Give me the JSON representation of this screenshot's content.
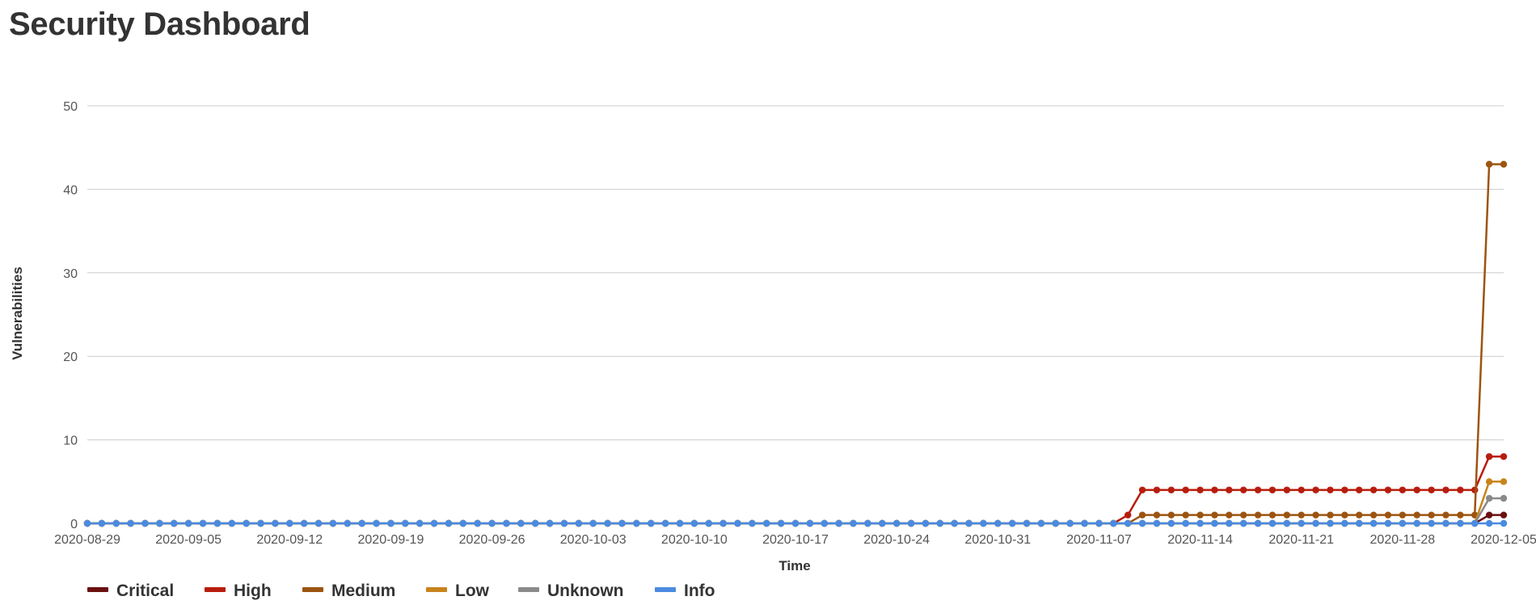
{
  "page": {
    "title": "Security Dashboard"
  },
  "chart_data": {
    "type": "line",
    "xlabel": "Time",
    "ylabel": "Vulnerabilities",
    "ylim": [
      0,
      50
    ],
    "yticks": [
      0,
      10,
      20,
      30,
      40,
      50
    ],
    "x_start": "2020-08-29",
    "x_end": "2020-12-05",
    "xticks": [
      "2020-08-29",
      "2020-09-05",
      "2020-09-12",
      "2020-09-19",
      "2020-09-26",
      "2020-10-03",
      "2020-10-10",
      "2020-10-17",
      "2020-10-24",
      "2020-10-31",
      "2020-11-07",
      "2020-11-14",
      "2020-11-21",
      "2020-11-28",
      "2020-12-05"
    ],
    "grid": "horizontal",
    "legend_position": "bottom-left",
    "series": [
      {
        "name": "Critical",
        "color": "#6b1010",
        "changes": [
          [
            "2020-08-29",
            0
          ],
          [
            "2020-12-04",
            1
          ]
        ]
      },
      {
        "name": "High",
        "color": "#b81c0c",
        "changes": [
          [
            "2020-08-29",
            0
          ],
          [
            "2020-11-09",
            1
          ],
          [
            "2020-11-10",
            4
          ],
          [
            "2020-12-04",
            8
          ]
        ]
      },
      {
        "name": "Medium",
        "color": "#9c5410",
        "changes": [
          [
            "2020-08-29",
            0
          ],
          [
            "2020-11-10",
            1
          ],
          [
            "2020-12-04",
            43
          ]
        ]
      },
      {
        "name": "Low",
        "color": "#c8841c",
        "changes": [
          [
            "2020-08-29",
            0
          ],
          [
            "2020-12-04",
            5
          ]
        ]
      },
      {
        "name": "Unknown",
        "color": "#8a8a8a",
        "changes": [
          [
            "2020-08-29",
            0
          ],
          [
            "2020-12-04",
            3
          ]
        ]
      },
      {
        "name": "Info",
        "color": "#4a8be0",
        "changes": [
          [
            "2020-08-29",
            0
          ]
        ]
      }
    ]
  }
}
